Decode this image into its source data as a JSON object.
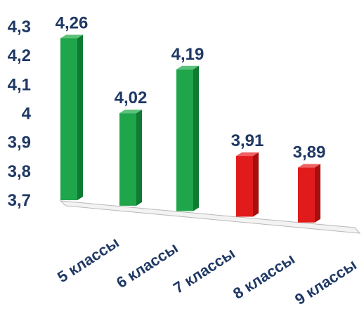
{
  "chart_data": {
    "type": "bar",
    "categories": [
      "5 классы",
      "6 классы",
      "7 классы",
      "8 классы",
      "9 классы"
    ],
    "values": [
      4.26,
      4.02,
      4.19,
      3.91,
      3.89
    ],
    "value_labels": [
      "4,26",
      "4,02",
      "4,19",
      "3,91",
      "3,89"
    ],
    "y_ticks": [
      "3,7",
      "3,8",
      "3,9",
      "4",
      "4,1",
      "4,2",
      "4,3"
    ],
    "y_tick_values": [
      3.7,
      3.8,
      3.9,
      4.0,
      4.1,
      4.2,
      4.3
    ],
    "ylim": [
      3.7,
      4.3
    ],
    "title": "",
    "xlabel": "",
    "ylabel": "",
    "grid": false,
    "legend": "none",
    "bar_colors": [
      "#1fa54a",
      "#1fa54a",
      "#1fa54a",
      "#e11b1b",
      "#e11b1b"
    ],
    "colors": {
      "green": "#1fa54a",
      "green_side": "#0f7a33",
      "green_top": "#5cc27a",
      "red": "#e11b1b",
      "red_side": "#a50f0f",
      "red_top": "#f06060",
      "text": "#1f3864"
    }
  }
}
